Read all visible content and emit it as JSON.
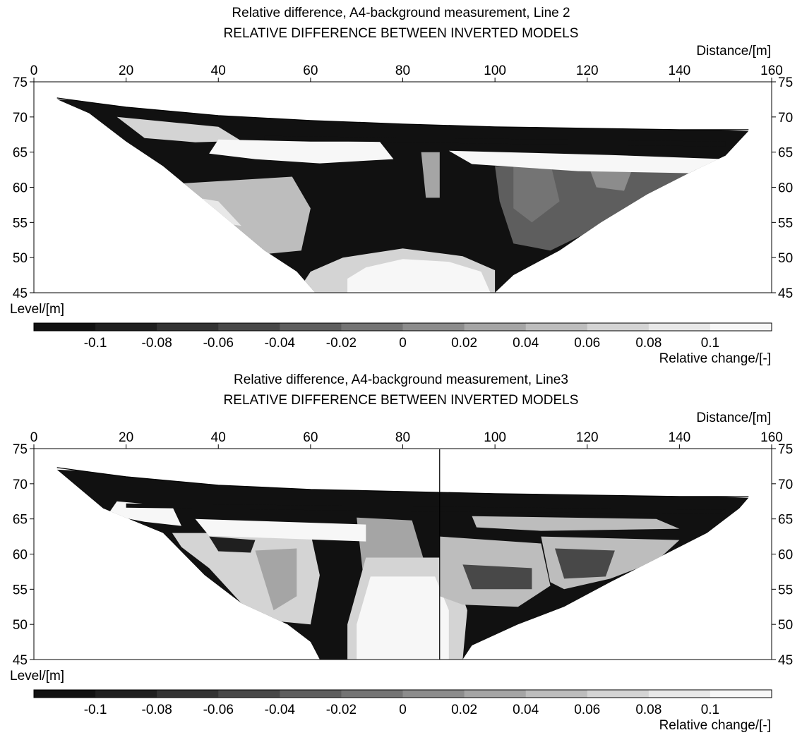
{
  "panels": [
    {
      "title": "Relative difference, A4-background measurement, Line 2",
      "subtitle": "RELATIVE DIFFERENCE BETWEEN INVERTED MODELS"
    },
    {
      "title": "Relative difference, A4-background measurement, Line3",
      "subtitle": "RELATIVE DIFFERENCE BETWEEN INVERTED MODELS"
    }
  ],
  "chart_data": [
    {
      "type": "heatmap",
      "title": "Relative difference, A4-background measurement, Line 2",
      "subtitle": "RELATIVE DIFFERENCE BETWEEN INVERTED MODELS",
      "xlabel": "Distance/[m]",
      "ylabel": "Level/[m]",
      "xlim": [
        0,
        160
      ],
      "ylim": [
        45,
        75
      ],
      "xticks": [
        "0",
        "20",
        "40",
        "60",
        "80",
        "100",
        "120",
        "140",
        "160"
      ],
      "yticks": [
        "45",
        "50",
        "55",
        "60",
        "65",
        "70",
        "75"
      ],
      "colorbar": {
        "label": "Relative change/[-]",
        "ticks": [
          "-0.1",
          "-0.08",
          "-0.06",
          "-0.04",
          "-0.02",
          "0",
          "0.02",
          "0.04",
          "0.06",
          "0.08",
          "0.1"
        ],
        "colors": [
          "#111111",
          "#1f1f1f",
          "#333333",
          "#484848",
          "#5e5e5e",
          "#747474",
          "#8c8c8c",
          "#a5a5a5",
          "#bdbdbd",
          "#d4d4d4",
          "#e8e8e8",
          "#f7f7f7"
        ]
      },
      "surface": [
        [
          5,
          72.7
        ],
        [
          20,
          71.4
        ],
        [
          40,
          70.2
        ],
        [
          60,
          69.5
        ],
        [
          80,
          69.0
        ],
        [
          100,
          68.6
        ],
        [
          120,
          68.4
        ],
        [
          140,
          68.2
        ],
        [
          155,
          68.2
        ]
      ],
      "base": [
        [
          5,
          72.5
        ],
        [
          12,
          70.5
        ],
        [
          20,
          66.5
        ],
        [
          28,
          63.0
        ],
        [
          40,
          56.5
        ],
        [
          50,
          51.0
        ],
        [
          57,
          48.0
        ],
        [
          61,
          45.0
        ],
        [
          100,
          45.0
        ],
        [
          104,
          47.5
        ],
        [
          114,
          51.0
        ],
        [
          123,
          55.0
        ],
        [
          133,
          59.0
        ],
        [
          142,
          62.0
        ],
        [
          150,
          64.5
        ],
        [
          155,
          68.0
        ]
      ],
      "zones": [
        {
          "value": -0.11,
          "poly": [
            [
              5,
              72.5
            ],
            [
              155,
              68.0
            ],
            [
              150,
              64.5
            ],
            [
              142,
              62.0
            ],
            [
              133,
              59.0
            ],
            [
              123,
              55.0
            ],
            [
              114,
              51.0
            ],
            [
              104,
              47.5
            ],
            [
              100,
              45.0
            ],
            [
              61,
              45.0
            ],
            [
              57,
              48.0
            ],
            [
              50,
              51.0
            ],
            [
              40,
              56.5
            ],
            [
              28,
              63.0
            ],
            [
              20,
              66.5
            ],
            [
              12,
              70.5
            ]
          ]
        },
        {
          "value": 0.05,
          "poly": [
            [
              31,
              60.5
            ],
            [
              56,
              61.5
            ],
            [
              60,
              57.0
            ],
            [
              58,
              51.0
            ],
            [
              50,
              50.5
            ],
            [
              42,
              53.0
            ],
            [
              36,
              58.0
            ]
          ]
        },
        {
          "value": 0.09,
          "poly": [
            [
              31,
              59.0
            ],
            [
              40,
              58.0
            ],
            [
              45,
              54.5
            ],
            [
              40,
              55.0
            ],
            [
              35,
              58.0
            ]
          ]
        },
        {
          "value": -0.04,
          "poly": [
            [
              100,
              63.0
            ],
            [
              145,
              62.5
            ],
            [
              133,
              58.5
            ],
            [
              123,
              54.5
            ],
            [
              112,
              51.0
            ],
            [
              104,
              52.0
            ],
            [
              101,
              58.0
            ]
          ]
        },
        {
          "value": -0.02,
          "poly": [
            [
              104,
              63.0
            ],
            [
              112,
              63.5
            ],
            [
              114,
              58.0
            ],
            [
              108,
              55.0
            ],
            [
              104,
              57.0
            ]
          ]
        },
        {
          "value": 0.0,
          "poly": [
            [
              120,
              63.5
            ],
            [
              130,
              63.0
            ],
            [
              128,
              59.5
            ],
            [
              122,
              60.0
            ]
          ]
        },
        {
          "value": 0.03,
          "poly": [
            [
              84,
              65.0
            ],
            [
              88,
              65.0
            ],
            [
              88,
              58.5
            ],
            [
              85,
              58.5
            ]
          ]
        },
        {
          "value": 0.07,
          "poly": [
            [
              18,
              70.0
            ],
            [
              40,
              68.6
            ],
            [
              45,
              66.6
            ],
            [
              35,
              66.4
            ],
            [
              24,
              67.0
            ]
          ]
        },
        {
          "value": 0.1,
          "poly": [
            [
              40,
              66.8
            ],
            [
              60,
              66.5
            ],
            [
              75,
              66.5
            ],
            [
              78,
              64.0
            ],
            [
              62,
              63.4
            ],
            [
              48,
              64.0
            ],
            [
              38,
              64.8
            ]
          ]
        },
        {
          "value": 0.1,
          "poly": [
            [
              90,
              65.2
            ],
            [
              125,
              64.6
            ],
            [
              150,
              64.0
            ],
            [
              143,
              62.0
            ],
            [
              118,
              62.3
            ],
            [
              95,
              63.3
            ]
          ]
        },
        {
          "value": -0.11,
          "poly": [
            [
              50,
              67.3
            ],
            [
              150,
              66.5
            ],
            [
              150,
              65.8
            ],
            [
              100,
              66.2
            ],
            [
              50,
              66.7
            ]
          ]
        },
        {
          "value": 0.07,
          "poly": [
            [
              57,
              45.0
            ],
            [
              100,
              45.0
            ],
            [
              100,
              48.2
            ],
            [
              93,
              50.2
            ],
            [
              80,
              51.3
            ],
            [
              67,
              50.0
            ],
            [
              60,
              48.0
            ]
          ]
        },
        {
          "value": 0.11,
          "poly": [
            [
              68,
              45.0
            ],
            [
              99,
              45.0
            ],
            [
              97,
              48.0
            ],
            [
              90,
              49.4
            ],
            [
              80,
              49.8
            ],
            [
              72,
              48.6
            ],
            [
              68,
              47.0
            ]
          ]
        }
      ]
    },
    {
      "type": "heatmap",
      "title": "Relative difference, A4-background measurement, Line3",
      "subtitle": "RELATIVE DIFFERENCE BETWEEN INVERTED MODELS",
      "xlabel": "Distance/[m]",
      "ylabel": "Level/[m]",
      "xlim": [
        0,
        160
      ],
      "ylim": [
        45,
        75
      ],
      "xticks": [
        "0",
        "20",
        "40",
        "60",
        "80",
        "100",
        "120",
        "140",
        "160"
      ],
      "yticks": [
        "45",
        "50",
        "55",
        "60",
        "65",
        "70",
        "75"
      ],
      "colorbar": {
        "label": "Relative change/[-]",
        "ticks": [
          "-0.1",
          "-0.08",
          "-0.06",
          "-0.04",
          "-0.02",
          "0",
          "0.02",
          "0.04",
          "0.06",
          "0.08",
          "0.1"
        ],
        "colors": [
          "#111111",
          "#1f1f1f",
          "#333333",
          "#484848",
          "#5e5e5e",
          "#747474",
          "#8c8c8c",
          "#a5a5a5",
          "#bdbdbd",
          "#d4d4d4",
          "#e8e8e8",
          "#f7f7f7"
        ]
      },
      "vertical_marker_x": 88,
      "surface": [
        [
          5,
          72.3
        ],
        [
          20,
          71.0
        ],
        [
          40,
          69.8
        ],
        [
          60,
          69.2
        ],
        [
          80,
          68.9
        ],
        [
          100,
          68.6
        ],
        [
          120,
          68.4
        ],
        [
          140,
          68.2
        ],
        [
          155,
          68.2
        ]
      ],
      "base": [
        [
          5,
          72.0
        ],
        [
          15,
          66.5
        ],
        [
          28,
          63.0
        ],
        [
          37,
          57.0
        ],
        [
          45,
          53.0
        ],
        [
          55,
          50.0
        ],
        [
          60,
          47.5
        ],
        [
          62,
          45.0
        ],
        [
          93,
          45.0
        ],
        [
          95,
          47.0
        ],
        [
          105,
          50.0
        ],
        [
          115,
          52.5
        ],
        [
          125,
          56.0
        ],
        [
          137,
          60.0
        ],
        [
          146,
          63.0
        ],
        [
          153,
          66.5
        ],
        [
          155,
          68.0
        ]
      ],
      "zones": [
        {
          "value": -0.11,
          "poly": [
            [
              5,
              72.0
            ],
            [
              155,
              68.0
            ],
            [
              153,
              66.5
            ],
            [
              146,
              63.0
            ],
            [
              137,
              60.0
            ],
            [
              125,
              56.0
            ],
            [
              115,
              52.5
            ],
            [
              105,
              50.0
            ],
            [
              95,
              47.0
            ],
            [
              93,
              45.0
            ],
            [
              62,
              45.0
            ],
            [
              60,
              47.5
            ],
            [
              55,
              50.0
            ],
            [
              45,
              53.0
            ],
            [
              37,
              57.0
            ],
            [
              28,
              63.0
            ],
            [
              15,
              66.5
            ]
          ]
        },
        {
          "value": 0.07,
          "poly": [
            [
              30,
              63.0
            ],
            [
              60,
              63.0
            ],
            [
              62,
              57.0
            ],
            [
              60,
              50.0
            ],
            [
              52,
              50.5
            ],
            [
              45,
              53.0
            ],
            [
              38,
              58.0
            ],
            [
              32,
              61.0
            ]
          ]
        },
        {
          "value": 0.03,
          "poly": [
            [
              48,
              60.5
            ],
            [
              57,
              60.8
            ],
            [
              57,
              54.0
            ],
            [
              52,
              52.0
            ]
          ]
        },
        {
          "value": -0.09,
          "poly": [
            [
              38,
              62.5
            ],
            [
              48,
              62.0
            ],
            [
              47,
              60.2
            ],
            [
              40,
              60.4
            ]
          ]
        },
        {
          "value": 0.03,
          "poly": [
            [
              70,
              65.2
            ],
            [
              82,
              64.8
            ],
            [
              86,
              56.0
            ],
            [
              88,
              51.5
            ],
            [
              80,
              51.8
            ],
            [
              72,
              53.5
            ]
          ]
        },
        {
          "value": 0.07,
          "poly": [
            [
              72,
              59.5
            ],
            [
              90,
              59.5
            ],
            [
              94,
              52.0
            ],
            [
              93,
              45.0
            ],
            [
              68,
              45.0
            ],
            [
              68,
              50.0
            ]
          ]
        },
        {
          "value": 0.11,
          "poly": [
            [
              73,
              56.8
            ],
            [
              87,
              56.8
            ],
            [
              90,
              52.0
            ],
            [
              90,
              45.0
            ],
            [
              70,
              45.0
            ],
            [
              70,
              50.0
            ]
          ]
        },
        {
          "value": 0.05,
          "poly": [
            [
              88,
              62.5
            ],
            [
              110,
              61.5
            ],
            [
              112,
              55.5
            ],
            [
              105,
              52.5
            ],
            [
              93,
              52.8
            ],
            [
              88,
              54.0
            ]
          ]
        },
        {
          "value": -0.06,
          "poly": [
            [
              93,
              58.5
            ],
            [
              108,
              58.0
            ],
            [
              108,
              55.0
            ],
            [
              95,
              55.0
            ]
          ]
        },
        {
          "value": 0.04,
          "poly": [
            [
              110,
              62.5
            ],
            [
              140,
              62.0
            ],
            [
              135,
              59.0
            ],
            [
              125,
              56.5
            ],
            [
              115,
              55.0
            ],
            [
              112,
              56.0
            ]
          ]
        },
        {
          "value": -0.06,
          "poly": [
            [
              113,
              60.8
            ],
            [
              126,
              60.5
            ],
            [
              124,
              56.8
            ],
            [
              115,
              56.5
            ]
          ]
        },
        {
          "value": 0.1,
          "poly": [
            [
              18,
              67.5
            ],
            [
              30,
              66.8
            ],
            [
              32,
              64.0
            ],
            [
              24,
              64.6
            ],
            [
              16,
              65.6
            ]
          ]
        },
        {
          "value": 0.1,
          "poly": [
            [
              35,
              65.0
            ],
            [
              72,
              64.2
            ],
            [
              72,
              61.8
            ],
            [
              55,
              62.2
            ],
            [
              38,
              62.6
            ]
          ]
        },
        {
          "value": 0.05,
          "poly": [
            [
              95,
              65.4
            ],
            [
              135,
              65.0
            ],
            [
              140,
              63.6
            ],
            [
              110,
              63.3
            ],
            [
              96,
              63.8
            ]
          ]
        },
        {
          "value": -0.11,
          "poly": [
            [
              20,
              67.2
            ],
            [
              150,
              66.3
            ],
            [
              150,
              65.7
            ],
            [
              90,
              66.0
            ],
            [
              20,
              66.6
            ]
          ]
        }
      ]
    }
  ]
}
